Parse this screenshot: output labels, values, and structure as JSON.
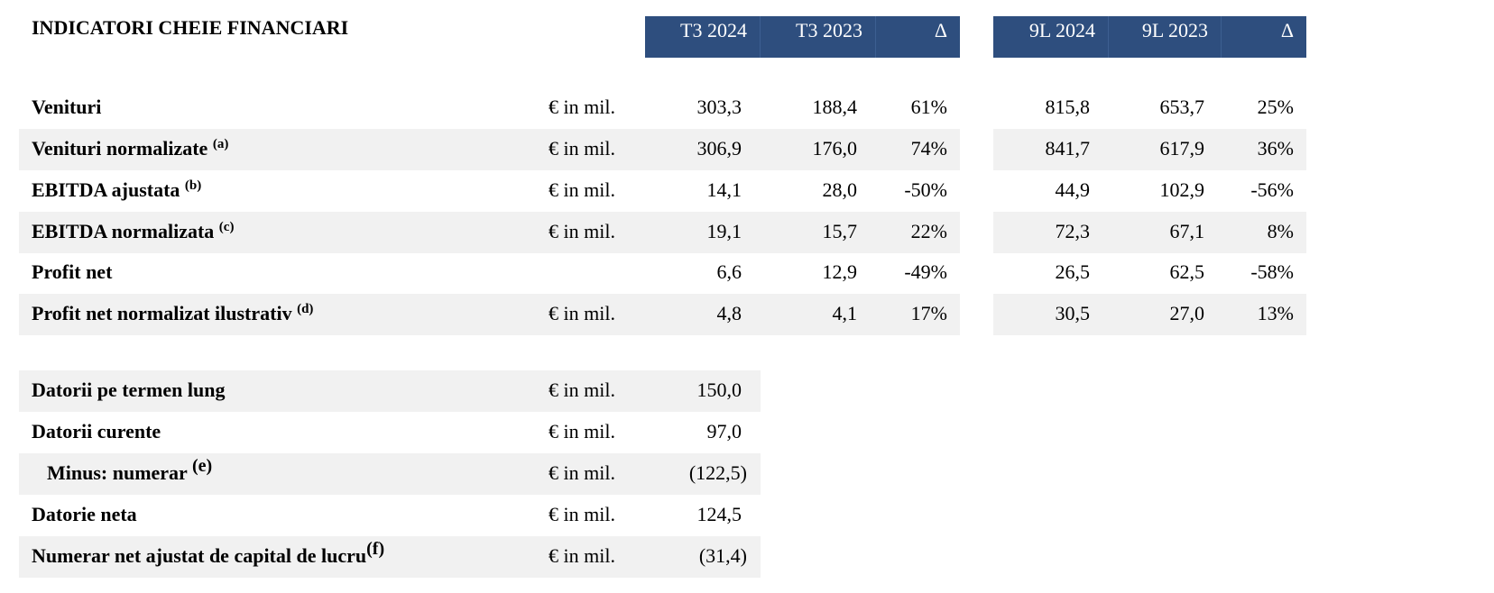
{
  "title": "INDICATORI CHEIE FINANCIARI",
  "headers": {
    "quarter": [
      "T3 2024",
      "T3 2023",
      "Δ"
    ],
    "ytd": [
      "9L 2024",
      "9L 2023",
      "Δ"
    ]
  },
  "indicators": [
    {
      "label": "Venituri",
      "note": "",
      "unit": "€ in mil.",
      "q_cur": "303,3",
      "q_prev": "188,4",
      "q_delta": "61%",
      "y_cur": "815,8",
      "y_prev": "653,7",
      "y_delta": "25%"
    },
    {
      "label": "Venituri normalizate ",
      "note": "(a)",
      "unit": "€ in mil.",
      "q_cur": "306,9",
      "q_prev": "176,0",
      "q_delta": "74%",
      "y_cur": "841,7",
      "y_prev": "617,9",
      "y_delta": "36%"
    },
    {
      "label": "EBITDA ajustata ",
      "note": "(b)",
      "unit": "€ in mil.",
      "q_cur": "14,1",
      "q_prev": "28,0",
      "q_delta": "-50%",
      "y_cur": "44,9",
      "y_prev": "102,9",
      "y_delta": "-56%"
    },
    {
      "label": "EBITDA normalizata ",
      "note": "(c)",
      "unit": "€ in mil.",
      "q_cur": "19,1",
      "q_prev": "15,7",
      "q_delta": "22%",
      "y_cur": "72,3",
      "y_prev": "67,1",
      "y_delta": "8%"
    },
    {
      "label": "Profit net",
      "note": "",
      "unit": "",
      "q_cur": "6,6",
      "q_prev": "12,9",
      "q_delta": "-49%",
      "y_cur": "26,5",
      "y_prev": "62,5",
      "y_delta": "-58%"
    },
    {
      "label": "Profit net normalizat ilustrativ ",
      "note": "(d)",
      "unit": "€ in mil.",
      "q_cur": "4,8",
      "q_prev": "4,1",
      "q_delta": "17%",
      "y_cur": "30,5",
      "y_prev": "27,0",
      "y_delta": "13%"
    }
  ],
  "debt": [
    {
      "label": "Datorii pe termen lung",
      "note": "",
      "unit": "€ in mil.",
      "value": "150,0"
    },
    {
      "label": "Datorii curente",
      "note": "",
      "unit": "€ in mil.",
      "value": "97,0"
    },
    {
      "label": "Minus: numerar ",
      "note": "(e)",
      "unit": "€ in mil.",
      "value": "(122,5)"
    },
    {
      "label": "Datorie neta",
      "note": "",
      "unit": "€ in mil.",
      "value": "124,5"
    },
    {
      "label": "Numerar net ajustat de capital de lucru",
      "note": "(f)",
      "unit": "€ in mil.",
      "value": "(31,4)"
    }
  ]
}
